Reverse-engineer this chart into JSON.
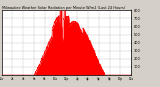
{
  "title": "Milwaukee Weather Solar Radiation per Minute W/m2 (Last 24 Hours)",
  "bg_color": "#d4d0c8",
  "plot_bg_color": "#ffffff",
  "bar_color": "#ff0000",
  "grid_color": "#888888",
  "text_color": "#000000",
  "ylim": [
    0,
    800
  ],
  "yticks": [
    100,
    200,
    300,
    400,
    500,
    600,
    700,
    800
  ],
  "num_points": 1440,
  "figsize": [
    1.6,
    0.87
  ],
  "dpi": 100
}
